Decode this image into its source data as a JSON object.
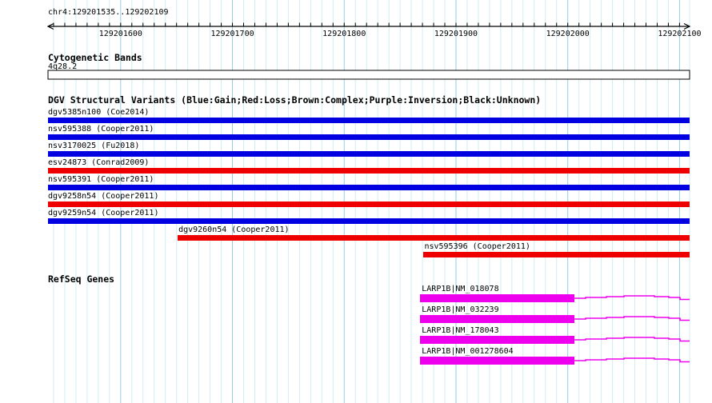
{
  "view": {
    "title": "chr4:129201535..129202109",
    "chromosome": "chr4",
    "start": 129201535,
    "end": 129202109,
    "ruler_labels": [
      129201600,
      129201700,
      129201800,
      129201900,
      129202000,
      129202100
    ],
    "minor_tick_bp": 10
  },
  "colors": {
    "gain_blue": "#0000E0",
    "loss_red": "#EE0000",
    "gene_magenta": "#EE00EE",
    "grid_minor": "#CFEEF2",
    "grid_major": "#96CDE6",
    "ruler_black": "#000000",
    "background": "#FFFFFF"
  },
  "cytobands": {
    "header": "Cytogenetic Bands",
    "bands": [
      {
        "name": "4q28.2",
        "start": 129201535,
        "end": 129202109
      }
    ]
  },
  "dgv": {
    "header": "DGV Structural Variants (Blue:Gain;Red:Loss;Brown:Complex;Purple:Inversion;Black:Unknown)",
    "legend": {
      "blue": "Gain",
      "red": "Loss",
      "brown": "Complex",
      "purple": "Inversion",
      "black": "Unknown"
    },
    "tracks": [
      {
        "label": "dgv5385n100 (Coe2014)",
        "type": "gain",
        "start": 129201535,
        "end": 129202109
      },
      {
        "label": "nsv595388 (Cooper2011)",
        "type": "gain",
        "start": 129201535,
        "end": 129202109
      },
      {
        "label": "nsv3170025 (Fu2018)",
        "type": "gain",
        "start": 129201535,
        "end": 129202109
      },
      {
        "label": "esv24873 (Conrad2009)",
        "type": "loss",
        "start": 129201535,
        "end": 129202109
      },
      {
        "label": "nsv595391 (Cooper2011)",
        "type": "gain",
        "start": 129201535,
        "end": 129202109
      },
      {
        "label": "dgv9258n54 (Cooper2011)",
        "type": "loss",
        "start": 129201535,
        "end": 129202109
      },
      {
        "label": "dgv9259n54 (Cooper2011)",
        "type": "gain",
        "start": 129201535,
        "end": 129202109
      },
      {
        "label": "dgv9260n54 (Cooper2011)",
        "type": "loss",
        "start": 129201651,
        "end": 129202109
      },
      {
        "label": "nsv595396 (Cooper2011)",
        "type": "loss",
        "start": 129201871,
        "end": 129202109
      }
    ]
  },
  "refseq": {
    "header": "RefSeq Genes",
    "genes": [
      {
        "label": "LARP1B|NM_018078",
        "block_start": 129201868,
        "block_end": 129202006,
        "line_end": 129202109
      },
      {
        "label": "LARP1B|NM_032239",
        "block_start": 129201868,
        "block_end": 129202006,
        "line_end": 129202109
      },
      {
        "label": "LARP1B|NM_178043",
        "block_start": 129201868,
        "block_end": 129202006,
        "line_end": 129202109
      },
      {
        "label": "LARP1B|NM_001278604",
        "block_start": 129201868,
        "block_end": 129202006,
        "line_end": 129202109
      }
    ]
  }
}
